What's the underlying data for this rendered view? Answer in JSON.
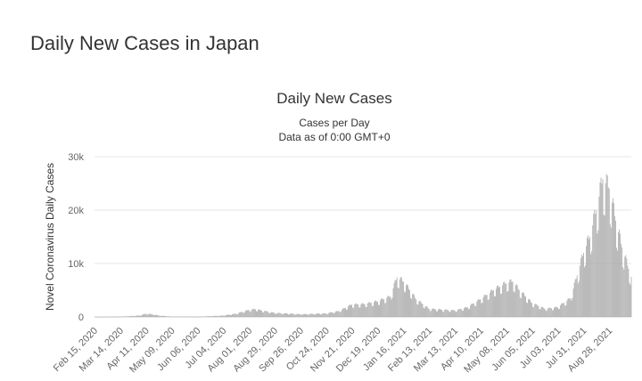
{
  "page": {
    "title": "Daily New Cases in Japan"
  },
  "chart_data": {
    "type": "bar",
    "title": "Daily New Cases",
    "subtitle": [
      "Cases per Day",
      "Data as of 0:00 GMT+0"
    ],
    "ylabel": "Novel Coronavirus Daily Cases",
    "xlabel": "",
    "ylim": [
      0,
      30000
    ],
    "yticks": [
      0,
      10000,
      20000,
      30000
    ],
    "ytick_labels": [
      "0",
      "10k",
      "20k",
      "30k"
    ],
    "grid": true,
    "xlim": [
      "2020-02-15",
      "2021-09-21"
    ],
    "xtick_dates": [
      "2020-02-15",
      "2020-03-14",
      "2020-04-11",
      "2020-05-09",
      "2020-06-06",
      "2020-07-04",
      "2020-08-01",
      "2020-08-29",
      "2020-09-26",
      "2020-10-24",
      "2020-11-21",
      "2020-12-19",
      "2021-01-16",
      "2021-02-13",
      "2021-03-13",
      "2021-04-10",
      "2021-05-08",
      "2021-06-05",
      "2021-07-03",
      "2021-07-31",
      "2021-08-28"
    ],
    "xtick_labels": [
      "Feb 15, 2020",
      "Mar 14, 2020",
      "Apr 11, 2020",
      "May 09, 2020",
      "Jun 06, 2020",
      "Jul 04, 2020",
      "Aug 01, 2020",
      "Aug 29, 2020",
      "Sep 26, 2020",
      "Oct 24, 2020",
      "Nov 21, 2020",
      "Dec 19, 2020",
      "Jan 16, 2021",
      "Feb 13, 2021",
      "Mar 13, 2021",
      "Apr 10, 2021",
      "May 08, 2021",
      "Jun 05, 2021",
      "Jul 03, 2021",
      "Jul 31, 2021",
      "Aug 28, 2021"
    ],
    "bar_color": "#a6a6a6",
    "series": [
      {
        "values": [
          {
            "date": "2020-02-15",
            "value": 0
          },
          {
            "date": "2020-03-14",
            "value": 50
          },
          {
            "date": "2020-04-04",
            "value": 250
          },
          {
            "date": "2020-04-11",
            "value": 600
          },
          {
            "date": "2020-04-18",
            "value": 500
          },
          {
            "date": "2020-04-25",
            "value": 250
          },
          {
            "date": "2020-05-09",
            "value": 60
          },
          {
            "date": "2020-06-06",
            "value": 40
          },
          {
            "date": "2020-07-04",
            "value": 250
          },
          {
            "date": "2020-07-18",
            "value": 600
          },
          {
            "date": "2020-08-01",
            "value": 1300
          },
          {
            "date": "2020-08-08",
            "value": 1450
          },
          {
            "date": "2020-08-15",
            "value": 1200
          },
          {
            "date": "2020-08-29",
            "value": 750
          },
          {
            "date": "2020-09-26",
            "value": 500
          },
          {
            "date": "2020-10-24",
            "value": 650
          },
          {
            "date": "2020-11-07",
            "value": 1100
          },
          {
            "date": "2020-11-21",
            "value": 2300
          },
          {
            "date": "2020-12-05",
            "value": 2400
          },
          {
            "date": "2020-12-19",
            "value": 2900
          },
          {
            "date": "2021-01-02",
            "value": 3800
          },
          {
            "date": "2021-01-09",
            "value": 7400
          },
          {
            "date": "2021-01-16",
            "value": 6600
          },
          {
            "date": "2021-01-23",
            "value": 5000
          },
          {
            "date": "2021-01-30",
            "value": 3300
          },
          {
            "date": "2021-02-13",
            "value": 1500
          },
          {
            "date": "2021-03-13",
            "value": 1200
          },
          {
            "date": "2021-03-27",
            "value": 1800
          },
          {
            "date": "2021-04-10",
            "value": 3300
          },
          {
            "date": "2021-04-24",
            "value": 5000
          },
          {
            "date": "2021-05-08",
            "value": 6300
          },
          {
            "date": "2021-05-15",
            "value": 6600
          },
          {
            "date": "2021-05-22",
            "value": 5000
          },
          {
            "date": "2021-06-05",
            "value": 2600
          },
          {
            "date": "2021-06-19",
            "value": 1500
          },
          {
            "date": "2021-07-03",
            "value": 1800
          },
          {
            "date": "2021-07-17",
            "value": 3500
          },
          {
            "date": "2021-07-31",
            "value": 12000
          },
          {
            "date": "2021-08-07",
            "value": 15000
          },
          {
            "date": "2021-08-14",
            "value": 20000
          },
          {
            "date": "2021-08-21",
            "value": 25800
          },
          {
            "date": "2021-08-28",
            "value": 24000
          },
          {
            "date": "2021-09-04",
            "value": 18000
          },
          {
            "date": "2021-09-11",
            "value": 13000
          },
          {
            "date": "2021-09-18",
            "value": 9000
          },
          {
            "date": "2021-09-21",
            "value": 7500
          }
        ]
      }
    ]
  }
}
